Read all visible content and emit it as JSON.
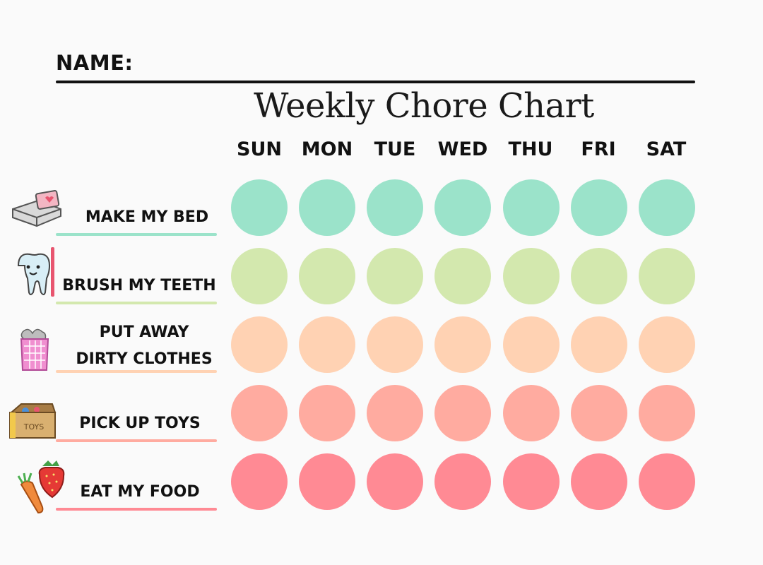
{
  "name_label": "NAME:",
  "title": "Weekly Chore Chart",
  "days": [
    "SUN",
    "MON",
    "TUE",
    "WED",
    "THU",
    "FRI",
    "SAT"
  ],
  "chores": [
    {
      "label_lines": [
        "MAKE MY BED"
      ],
      "color": "#9be3ca",
      "line_color": "#9be3ca",
      "icon": "bed-icon"
    },
    {
      "label_lines": [
        "BRUSH MY TEETH"
      ],
      "color": "#d3e8ae",
      "line_color": "#d3e8ae",
      "icon": "tooth-icon"
    },
    {
      "label_lines": [
        "PUT AWAY",
        "DIRTY CLOTHES"
      ],
      "color": "#ffd2b3",
      "line_color": "#ffd2b3",
      "icon": "laundry-basket-icon"
    },
    {
      "label_lines": [
        "PICK UP TOYS"
      ],
      "color": "#ffaba0",
      "line_color": "#ffaba0",
      "icon": "toy-box-icon",
      "icon_text": "TOYS"
    },
    {
      "label_lines": [
        "EAT MY FOOD"
      ],
      "color": "#ff8a94",
      "line_color": "#ff8a94",
      "icon": "carrot-strawberry-icon"
    }
  ]
}
